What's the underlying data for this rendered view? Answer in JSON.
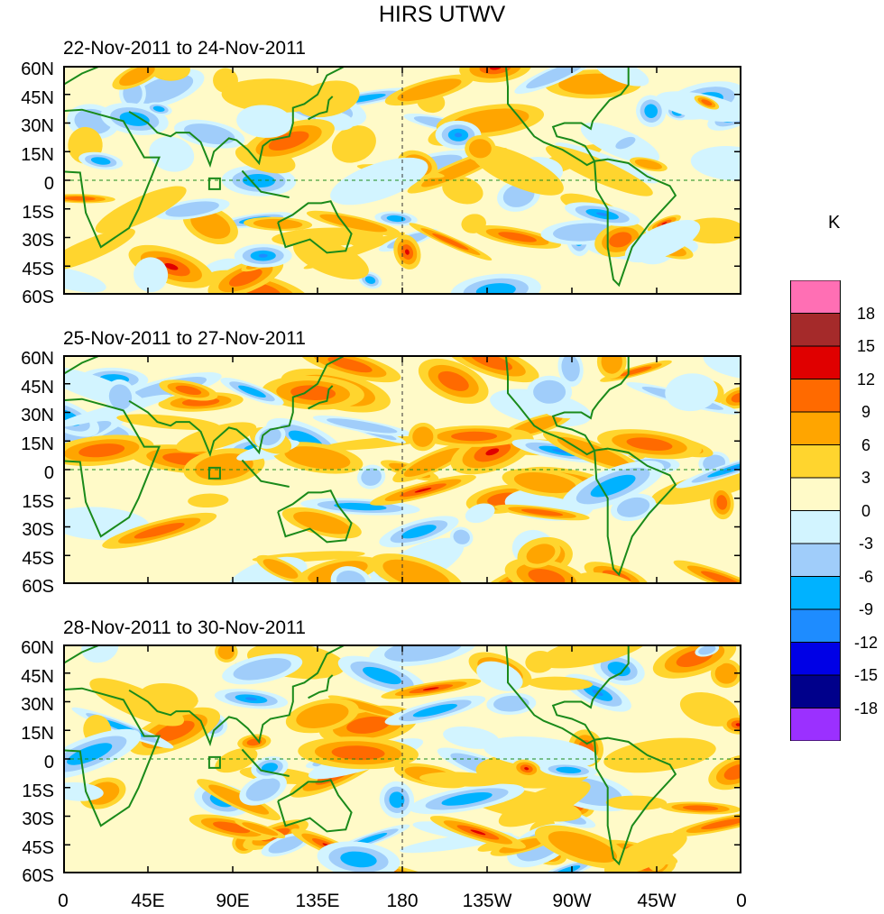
{
  "title": "HIRS UTWV",
  "unit": "K",
  "panels": [
    {
      "date_range": "22-Nov-2011 to 24-Nov-2011"
    },
    {
      "date_range": "25-Nov-2011 to 27-Nov-2011"
    },
    {
      "date_range": "28-Nov-2011 to 30-Nov-2011"
    }
  ],
  "lat_labels": [
    "60N",
    "45N",
    "30N",
    "15N",
    "0",
    "15S",
    "30S",
    "45S",
    "60S"
  ],
  "lon_labels": [
    "0",
    "45E",
    "90E",
    "135E",
    "180",
    "135W",
    "90W",
    "45W",
    "0"
  ],
  "colorbar": {
    "levels": [
      "18",
      "15",
      "12",
      "9",
      "6",
      "3",
      "0",
      "-3",
      "-6",
      "-9",
      "-12",
      "-15",
      "-18"
    ],
    "colors": [
      "#ff6fb4",
      "#a52a2a",
      "#e00000",
      "#ff6a00",
      "#ffa500",
      "#ffd52e",
      "#fffac8",
      "#d2f4ff",
      "#a0cdfa",
      "#00b2ff",
      "#1e8cff",
      "#0000e6",
      "#00008b",
      "#9b30ff"
    ]
  }
}
